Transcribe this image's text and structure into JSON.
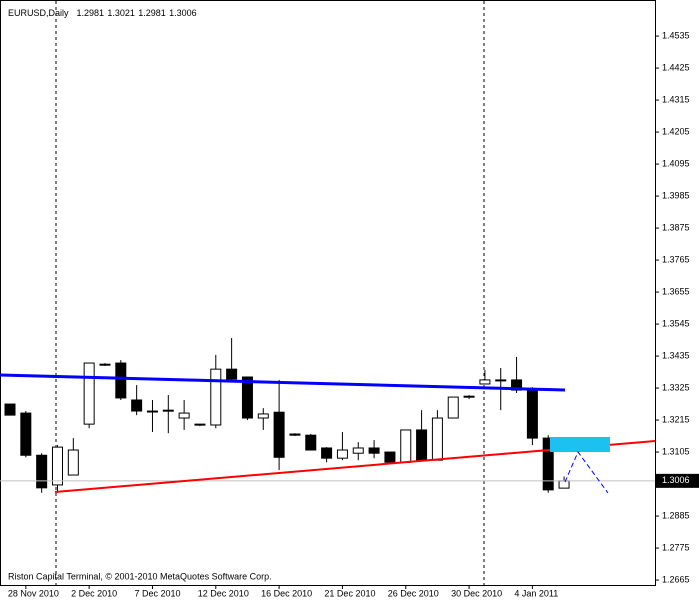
{
  "chart_data": {
    "type": "candlestick",
    "title": "EURUSD,Daily",
    "footer": "Riston Capital Terminal, © 2001-2010 MetaQuotes Software Corp.",
    "categories": [
      null,
      "28 Nov 2010",
      null,
      null,
      null,
      "2 Dec 2010",
      null,
      null,
      null,
      "7 Dec 2010",
      null,
      null,
      null,
      "12 Dec 2010",
      null,
      null,
      null,
      "16 Dec 2010",
      null,
      null,
      null,
      "21 Dec 2010",
      null,
      null,
      null,
      "26 Dec 2010",
      null,
      null,
      null,
      "30 Dec 2010",
      null,
      null,
      null,
      "4 Jan 2011",
      null,
      null
    ],
    "open": [
      1.327,
      1.3239,
      1.3094,
      1.2992,
      1.3026,
      1.3201,
      1.3407,
      1.3411,
      1.3284,
      1.3246,
      1.3249,
      1.3222,
      1.3201,
      1.3198,
      1.339,
      1.3363,
      1.3222,
      1.3242,
      1.3167,
      1.3163,
      1.3119,
      1.3084,
      1.3101,
      1.3119,
      1.3105,
      1.307,
      1.3181,
      1.3077,
      1.3222,
      1.3294,
      1.3339,
      1.3353,
      1.3353,
      1.3318,
      1.3153,
      1.2981
    ],
    "high": [
      1.327,
      1.3246,
      1.3101,
      1.3129,
      1.3153,
      1.3411,
      1.3411,
      1.3421,
      1.3335,
      1.3284,
      1.3301,
      1.3284,
      1.3201,
      1.3439,
      1.3497,
      1.3363,
      1.3256,
      1.3353,
      1.317,
      1.3167,
      1.3122,
      1.3174,
      1.3139,
      1.3146,
      1.3105,
      1.3181,
      1.3249,
      1.3249,
      1.3294,
      1.3301,
      1.3387,
      1.3394,
      1.3432,
      1.3328,
      1.3163,
      1.3021
    ],
    "low": [
      1.3232,
      1.3087,
      1.2965,
      1.2965,
      1.3026,
      1.3187,
      1.3401,
      1.3284,
      1.3232,
      1.3174,
      1.317,
      1.3181,
      1.3194,
      1.3187,
      1.3353,
      1.3215,
      1.3181,
      1.3043,
      1.316,
      1.3112,
      1.307,
      1.3077,
      1.3077,
      1.3084,
      1.307,
      1.307,
      1.3077,
      1.3077,
      1.3222,
      1.3287,
      1.3339,
      1.3249,
      1.3308,
      1.3129,
      1.2965,
      1.2981
    ],
    "close": [
      1.3232,
      1.3094,
      1.2982,
      1.3122,
      1.3112,
      1.3411,
      1.3404,
      1.3291,
      1.3246,
      1.3246,
      1.3246,
      1.3239,
      1.3198,
      1.339,
      1.3356,
      1.3222,
      1.3236,
      1.3087,
      1.3163,
      1.3112,
      1.3084,
      1.3112,
      1.3119,
      1.3101,
      1.307,
      1.3181,
      1.3077,
      1.3222,
      1.3294,
      1.3297,
      1.3353,
      1.335,
      1.3318,
      1.3153,
      1.2975,
      1.3006
    ],
    "up_color": "#ffffff",
    "down_color": "#000000",
    "ylim": [
      1.2648,
      1.4659
    ],
    "yticks": [
      1.4535,
      1.4425,
      1.4315,
      1.4205,
      1.4095,
      1.3985,
      1.3875,
      1.3765,
      1.3655,
      1.3545,
      1.3435,
      1.3325,
      1.3215,
      1.3105,
      1.2885,
      1.2775,
      1.2665
    ]
  }
}
